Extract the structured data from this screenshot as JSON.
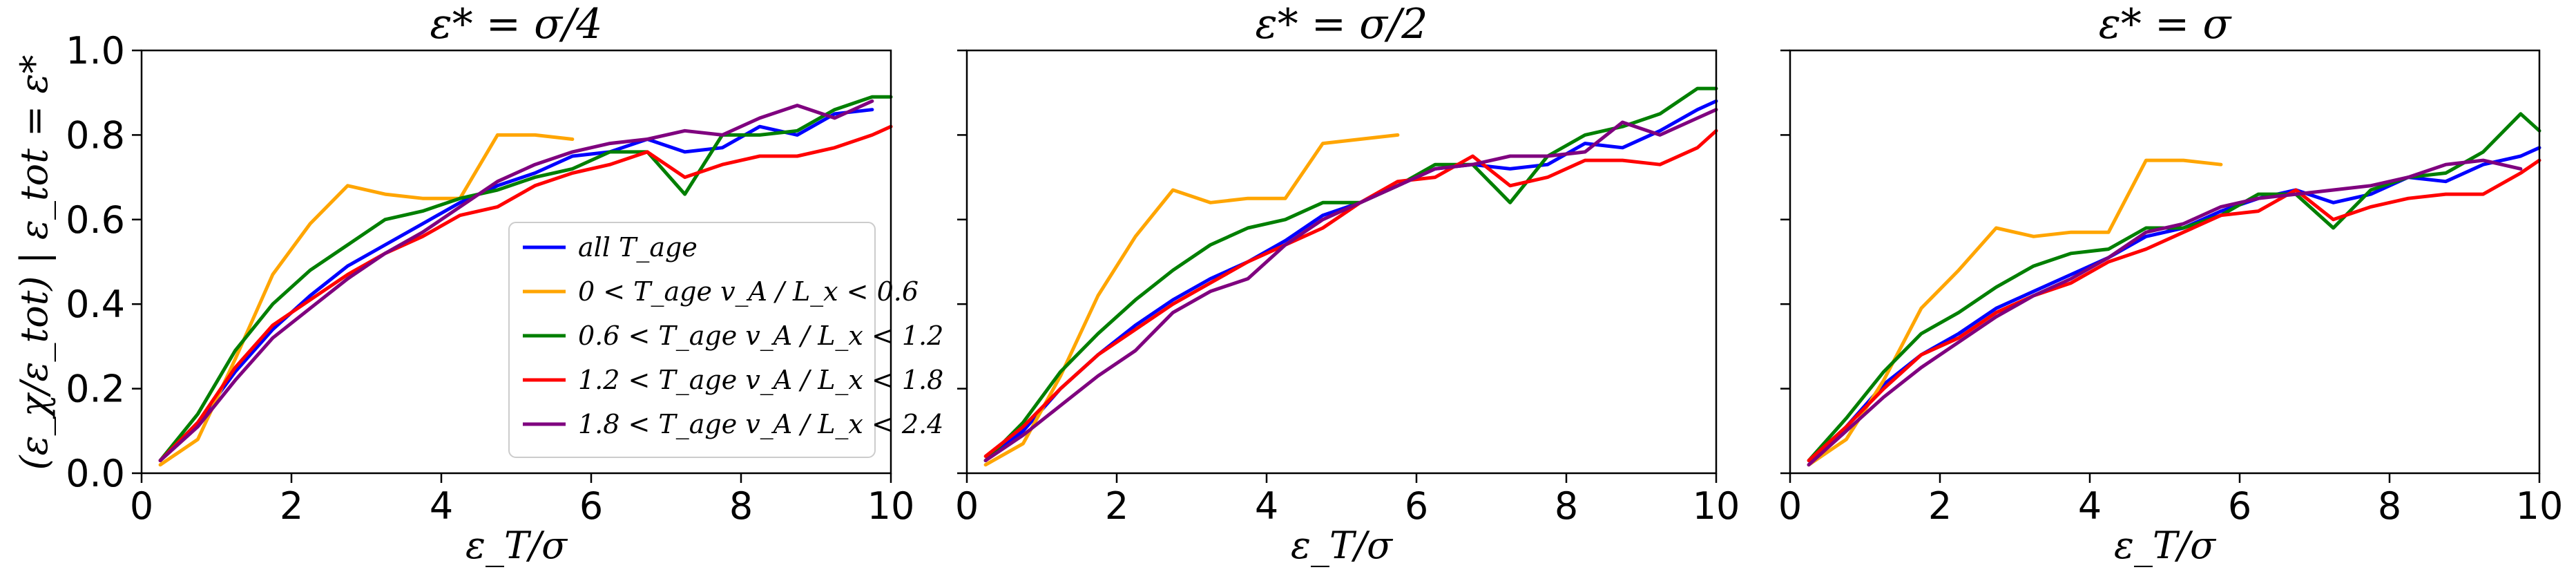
{
  "figure": {
    "ylabel": "(ε_χ/ε_tot) | ε_tot = ε*",
    "tick_labels_y": [
      "0.0",
      "0.2",
      "0.4",
      "0.6",
      "0.8",
      "1.0"
    ],
    "tick_labels_x": [
      "0",
      "2",
      "4",
      "6",
      "8",
      "10"
    ]
  },
  "legend": [
    {
      "label": "all T_age",
      "color": "#0000ff"
    },
    {
      "label": "0 < T_age v_A / L_x < 0.6",
      "color": "#ffa500"
    },
    {
      "label": "0.6 < T_age v_A / L_x < 1.2",
      "color": "#007f00"
    },
    {
      "label": "1.2 < T_age v_A / L_x < 1.8",
      "color": "#ff0000"
    },
    {
      "label": "1.8 < T_age v_A / L_x < 2.4",
      "color": "#7f007f"
    }
  ],
  "chart_data": [
    {
      "type": "line",
      "title": "ε* = σ/4",
      "xlabel": "ε_T/σ",
      "ylabel": "(ε_χ/ε_tot) | ε_tot = ε*",
      "xlim": [
        0,
        10
      ],
      "ylim": [
        0,
        1
      ],
      "grid": false,
      "legend_position": "bottom-right",
      "series": [
        {
          "name": "all T_age",
          "color": "#0000ff",
          "x": [
            0.25,
            0.75,
            1.25,
            1.75,
            2.25,
            2.75,
            3.25,
            3.75,
            4.25,
            4.75,
            5.25,
            5.75,
            6.25,
            6.75,
            7.25,
            7.75,
            8.25,
            8.75,
            9.25,
            9.75
          ],
          "y": [
            0.03,
            0.12,
            0.24,
            0.34,
            0.42,
            0.49,
            0.54,
            0.59,
            0.64,
            0.68,
            0.71,
            0.75,
            0.76,
            0.79,
            0.76,
            0.77,
            0.82,
            0.8,
            0.85,
            0.86
          ]
        },
        {
          "name": "0 < T_age v_A / L_x < 0.6",
          "color": "#ffa500",
          "x": [
            0.25,
            0.75,
            1.25,
            1.75,
            2.25,
            2.75,
            3.25,
            3.75,
            4.25,
            4.75,
            5.25,
            5.75
          ],
          "y": [
            0.02,
            0.08,
            0.27,
            0.47,
            0.59,
            0.68,
            0.66,
            0.65,
            0.65,
            0.8,
            0.8,
            0.79
          ]
        },
        {
          "name": "0.6 < T_age v_A / L_x < 1.2",
          "color": "#007f00",
          "x": [
            0.25,
            0.75,
            1.25,
            1.75,
            2.25,
            2.75,
            3.25,
            3.75,
            4.25,
            4.75,
            5.25,
            5.75,
            6.25,
            6.75,
            7.25,
            7.75,
            8.25,
            8.75,
            9.25,
            9.75,
            10.0
          ],
          "y": [
            0.03,
            0.14,
            0.29,
            0.4,
            0.48,
            0.54,
            0.6,
            0.62,
            0.65,
            0.67,
            0.7,
            0.72,
            0.76,
            0.76,
            0.66,
            0.8,
            0.8,
            0.81,
            0.86,
            0.89,
            0.89
          ]
        },
        {
          "name": "1.2 < T_age v_A / L_x < 1.8",
          "color": "#ff0000",
          "x": [
            0.25,
            0.75,
            1.25,
            1.75,
            2.25,
            2.75,
            3.25,
            3.75,
            4.25,
            4.75,
            5.25,
            5.75,
            6.25,
            6.75,
            7.25,
            7.75,
            8.25,
            8.75,
            9.25,
            9.75,
            10.0
          ],
          "y": [
            0.03,
            0.12,
            0.25,
            0.35,
            0.41,
            0.47,
            0.52,
            0.56,
            0.61,
            0.63,
            0.68,
            0.71,
            0.73,
            0.76,
            0.7,
            0.73,
            0.75,
            0.75,
            0.77,
            0.8,
            0.82
          ]
        },
        {
          "name": "1.8 < T_age v_A / L_x < 2.4",
          "color": "#7f007f",
          "x": [
            0.25,
            0.75,
            1.25,
            1.75,
            2.25,
            2.75,
            3.25,
            3.75,
            4.25,
            4.75,
            5.25,
            5.75,
            6.25,
            6.75,
            7.25,
            7.75,
            8.25,
            8.75,
            9.25,
            9.75
          ],
          "y": [
            0.03,
            0.11,
            0.22,
            0.32,
            0.39,
            0.46,
            0.52,
            0.57,
            0.63,
            0.69,
            0.73,
            0.76,
            0.78,
            0.79,
            0.81,
            0.8,
            0.84,
            0.87,
            0.84,
            0.88
          ]
        }
      ]
    },
    {
      "type": "line",
      "title": "ε* = σ/2",
      "xlabel": "ε_T/σ",
      "xlim": [
        0,
        10
      ],
      "ylim": [
        0,
        1
      ],
      "grid": false,
      "series": [
        {
          "name": "all T_age",
          "color": "#0000ff",
          "x": [
            0.25,
            0.75,
            1.25,
            1.75,
            2.25,
            2.75,
            3.25,
            3.75,
            4.25,
            4.75,
            5.25,
            5.75,
            6.25,
            6.75,
            7.25,
            7.75,
            8.25,
            8.75,
            9.25,
            9.75,
            10.0
          ],
          "y": [
            0.03,
            0.1,
            0.2,
            0.28,
            0.35,
            0.41,
            0.46,
            0.5,
            0.55,
            0.61,
            0.64,
            0.68,
            0.72,
            0.73,
            0.72,
            0.73,
            0.78,
            0.77,
            0.81,
            0.86,
            0.88
          ]
        },
        {
          "name": "0 < T_age v_A / L_x < 0.6",
          "color": "#ffa500",
          "x": [
            0.25,
            0.75,
            1.25,
            1.75,
            2.25,
            2.75,
            3.25,
            3.75,
            4.25,
            4.75,
            5.25,
            5.75
          ],
          "y": [
            0.02,
            0.07,
            0.23,
            0.42,
            0.56,
            0.67,
            0.64,
            0.65,
            0.65,
            0.78,
            0.79,
            0.8
          ]
        },
        {
          "name": "0.6 < T_age v_A / L_x < 1.2",
          "color": "#007f00",
          "x": [
            0.25,
            0.75,
            1.25,
            1.75,
            2.25,
            2.75,
            3.25,
            3.75,
            4.25,
            4.75,
            5.25,
            5.75,
            6.25,
            6.75,
            7.25,
            7.75,
            8.25,
            8.75,
            9.25,
            9.75,
            10.0
          ],
          "y": [
            0.03,
            0.12,
            0.24,
            0.33,
            0.41,
            0.48,
            0.54,
            0.58,
            0.6,
            0.64,
            0.64,
            0.68,
            0.73,
            0.73,
            0.64,
            0.75,
            0.8,
            0.82,
            0.85,
            0.91,
            0.91
          ]
        },
        {
          "name": "1.2 < T_age v_A / L_x < 1.8",
          "color": "#ff0000",
          "x": [
            0.25,
            0.75,
            1.25,
            1.75,
            2.25,
            2.75,
            3.25,
            3.75,
            4.25,
            4.75,
            5.25,
            5.75,
            6.25,
            6.75,
            7.25,
            7.75,
            8.25,
            8.75,
            9.25,
            9.75,
            10.0
          ],
          "y": [
            0.04,
            0.11,
            0.2,
            0.28,
            0.34,
            0.4,
            0.45,
            0.5,
            0.54,
            0.58,
            0.64,
            0.69,
            0.7,
            0.75,
            0.68,
            0.7,
            0.74,
            0.74,
            0.73,
            0.77,
            0.81
          ]
        },
        {
          "name": "1.8 < T_age v_A / L_x < 2.4",
          "color": "#7f007f",
          "x": [
            0.25,
            0.75,
            1.25,
            1.75,
            2.25,
            2.75,
            3.25,
            3.75,
            4.25,
            4.75,
            5.25,
            5.75,
            6.25,
            6.75,
            7.25,
            7.75,
            8.25,
            8.75,
            9.25,
            9.75,
            10.0
          ],
          "y": [
            0.03,
            0.09,
            0.16,
            0.23,
            0.29,
            0.38,
            0.43,
            0.46,
            0.54,
            0.6,
            0.64,
            0.68,
            0.72,
            0.73,
            0.75,
            0.75,
            0.76,
            0.83,
            0.8,
            0.84,
            0.86
          ]
        }
      ]
    },
    {
      "type": "line",
      "title": "ε* = σ",
      "xlabel": "ε_T/σ",
      "xlim": [
        0,
        10
      ],
      "ylim": [
        0,
        1
      ],
      "grid": false,
      "series": [
        {
          "name": "all T_age",
          "color": "#0000ff",
          "x": [
            0.25,
            0.75,
            1.25,
            1.75,
            2.25,
            2.75,
            3.25,
            3.75,
            4.25,
            4.75,
            5.25,
            5.75,
            6.25,
            6.75,
            7.25,
            7.75,
            8.25,
            8.75,
            9.25,
            9.75,
            10.0
          ],
          "y": [
            0.02,
            0.11,
            0.21,
            0.28,
            0.33,
            0.39,
            0.43,
            0.47,
            0.51,
            0.56,
            0.58,
            0.62,
            0.65,
            0.67,
            0.64,
            0.66,
            0.7,
            0.69,
            0.73,
            0.75,
            0.77
          ]
        },
        {
          "name": "0 < T_age v_A / L_x < 0.6",
          "color": "#ffa500",
          "x": [
            0.25,
            0.75,
            1.25,
            1.75,
            2.25,
            2.75,
            3.25,
            3.75,
            4.25,
            4.75,
            5.25,
            5.75
          ],
          "y": [
            0.02,
            0.08,
            0.22,
            0.39,
            0.48,
            0.58,
            0.56,
            0.57,
            0.57,
            0.74,
            0.74,
            0.73
          ]
        },
        {
          "name": "0.6 < T_age v_A / L_x < 1.2",
          "color": "#007f00",
          "x": [
            0.25,
            0.75,
            1.25,
            1.75,
            2.25,
            2.75,
            3.25,
            3.75,
            4.25,
            4.75,
            5.25,
            5.75,
            6.25,
            6.75,
            7.25,
            7.75,
            8.25,
            8.75,
            9.25,
            9.75,
            10.0
          ],
          "y": [
            0.03,
            0.13,
            0.24,
            0.33,
            0.38,
            0.44,
            0.49,
            0.52,
            0.53,
            0.58,
            0.58,
            0.61,
            0.66,
            0.66,
            0.58,
            0.67,
            0.7,
            0.71,
            0.76,
            0.85,
            0.81
          ]
        },
        {
          "name": "1.2 < T_age v_A / L_x < 1.8",
          "color": "#ff0000",
          "x": [
            0.25,
            0.75,
            1.25,
            1.75,
            2.25,
            2.75,
            3.25,
            3.75,
            4.25,
            4.75,
            5.25,
            5.75,
            6.25,
            6.75,
            7.25,
            7.75,
            8.25,
            8.75,
            9.25,
            9.75,
            10.0
          ],
          "y": [
            0.03,
            0.11,
            0.2,
            0.28,
            0.32,
            0.38,
            0.42,
            0.45,
            0.5,
            0.53,
            0.57,
            0.61,
            0.62,
            0.67,
            0.6,
            0.63,
            0.65,
            0.66,
            0.66,
            0.71,
            0.74
          ]
        },
        {
          "name": "1.8 < T_age v_A / L_x < 2.4",
          "color": "#7f007f",
          "x": [
            0.25,
            0.75,
            1.25,
            1.75,
            2.25,
            2.75,
            3.25,
            3.75,
            4.25,
            4.75,
            5.25,
            5.75,
            6.25,
            6.75,
            7.25,
            7.75,
            8.25,
            8.75,
            9.25,
            9.75
          ],
          "y": [
            0.02,
            0.1,
            0.18,
            0.25,
            0.31,
            0.37,
            0.42,
            0.46,
            0.51,
            0.57,
            0.59,
            0.63,
            0.65,
            0.66,
            0.67,
            0.68,
            0.7,
            0.73,
            0.74,
            0.72
          ]
        }
      ]
    }
  ]
}
